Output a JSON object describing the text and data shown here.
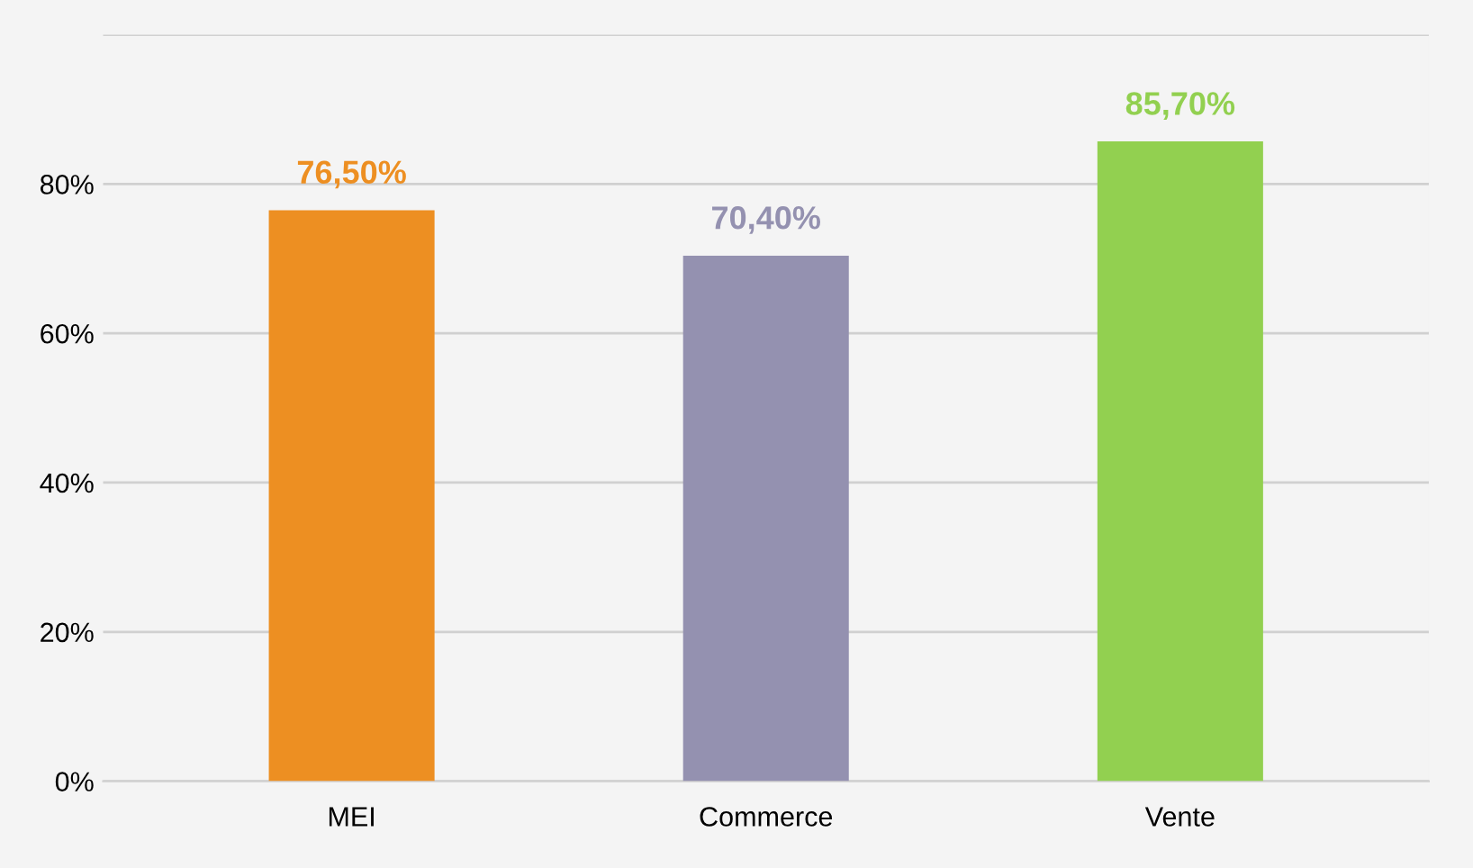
{
  "chart_data": {
    "type": "bar",
    "categories": [
      "MEI",
      "Commerce",
      "Vente"
    ],
    "values": [
      76.5,
      70.4,
      85.7
    ],
    "colors": [
      "#ed8f22",
      "#9491b0",
      "#92d050"
    ],
    "value_labels": [
      "76,50%",
      "70,40%",
      "85,70%"
    ],
    "ylim": [
      0,
      100
    ],
    "yticks": [
      {
        "value": 0,
        "label": "0%"
      },
      {
        "value": 20,
        "label": "20%"
      },
      {
        "value": 40,
        "label": "40%"
      },
      {
        "value": 60,
        "label": "60%"
      },
      {
        "value": 80,
        "label": "80%"
      },
      {
        "value": 100,
        "label": null
      }
    ],
    "grid": "y",
    "legend": false
  }
}
